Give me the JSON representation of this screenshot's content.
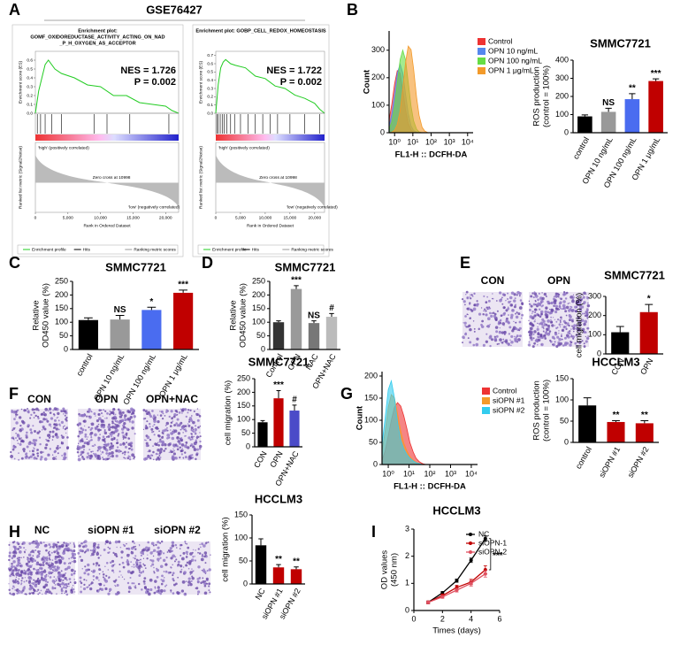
{
  "header": {
    "dataset_title": "GSE76427",
    "panel_labels": [
      "A",
      "B",
      "C",
      "D",
      "E",
      "F",
      "G",
      "H",
      "I"
    ]
  },
  "image_labels": {
    "E": [
      "CON",
      "OPN"
    ],
    "F": [
      "CON",
      "OPN",
      "OPN+NAC"
    ],
    "H": [
      "NC",
      "siOPN #1",
      "siOPN #2"
    ]
  },
  "chart_data": [
    {
      "type": "gsea",
      "title": [
        "Enrichment plot:",
        "GOMF_OXIDOREDUCTASE_ACTIVITY_ACTING_ON_NAD",
        "_P_H_OXYGEN_AS_ACCEPTOR"
      ],
      "nes": "NES = 1.726",
      "p": "P = 0.002",
      "ylabel": "Enrichment score (ES)",
      "metric_label": "Ranked list metric (Signal2Noise)",
      "xlabel": "Rank in Ordered Dataset",
      "high_label": "'high' (positively correlated)",
      "low_label": "'low' (negatively correlated)",
      "zero_cross": "Zero cross at 10998",
      "legend": [
        "Enrichment profile",
        "Hits",
        "Ranking metric scores"
      ],
      "color": "#22cc22",
      "x": [
        0,
        500,
        1000,
        1500,
        2000,
        3000,
        4000,
        6000,
        8000,
        10000,
        12000,
        14000,
        16000,
        18000,
        20000,
        21000,
        22000
      ],
      "values": [
        0,
        0.25,
        0.4,
        0.55,
        0.6,
        0.5,
        0.45,
        0.4,
        0.32,
        0.3,
        0.2,
        0.2,
        0.12,
        0.1,
        0.08,
        0.03,
        0
      ],
      "hits": [
        300,
        800,
        1500,
        2500,
        4000,
        9000,
        11000,
        14500,
        20500
      ],
      "xlim": [
        0,
        22000
      ],
      "xticks": [
        0,
        {
          "value": 5000,
          "label": "5,000"
        },
        {
          "value": 10000,
          "label": "10,000"
        },
        {
          "value": 15000,
          "label": "15,000"
        },
        {
          "value": 20000,
          "label": "20,000"
        }
      ],
      "ylim": [
        0,
        0.7
      ],
      "yticks": [
        {
          "value": 0,
          "label": "0.0"
        },
        0.1,
        0.2,
        0.3,
        0.4,
        0.5,
        0.6
      ]
    },
    {
      "type": "gsea",
      "title": [
        "Enrichment plot: GOBP_CELL_REDOX_HOMEOSTASIS"
      ],
      "nes": "NES = 1.722",
      "p": "P = 0.002",
      "ylabel": "Enrichment score (ES)",
      "metric_label": "Ranked list metric (Signal2Noise)",
      "xlabel": "Rank in Ordered Dataset",
      "high_label": "'high' (positively correlated)",
      "low_label": "'low' (negatively correlated)",
      "zero_cross": "Zero cross at 10998",
      "legend": [
        "Enrichment profile",
        "Hits",
        "Ranking metric scores"
      ],
      "color": "#22cc22",
      "x": [
        0,
        500,
        1000,
        1500,
        2000,
        3000,
        4000,
        6000,
        8000,
        10000,
        12000,
        14000,
        16000,
        18000,
        20000,
        21000,
        22000
      ],
      "values": [
        0,
        0.35,
        0.55,
        0.62,
        0.65,
        0.6,
        0.58,
        0.55,
        0.45,
        0.42,
        0.33,
        0.3,
        0.22,
        0.18,
        0.12,
        0.05,
        0
      ],
      "hits": [
        200,
        500,
        900,
        1300,
        1700,
        2200,
        3000,
        3800,
        5000,
        6500,
        8000,
        9500,
        11000,
        12500,
        15000,
        18000,
        21000
      ],
      "xlim": [
        0,
        22000
      ],
      "xticks": [
        0,
        {
          "value": 5000,
          "label": "5,000"
        },
        {
          "value": 10000,
          "label": "10,000"
        },
        {
          "value": 15000,
          "label": "15,000"
        },
        {
          "value": 20000,
          "label": "20,000"
        }
      ],
      "ylim": [
        0,
        0.75
      ],
      "yticks": [
        {
          "value": 0,
          "label": "0.0"
        },
        0.1,
        0.2,
        0.3,
        0.4,
        0.5,
        0.6,
        0.7
      ]
    },
    {
      "type": "flow",
      "xlabel": "FL1-H :: DCFH-DA",
      "ylabel": "Count",
      "log_x": true,
      "x": [
        0.5,
        0.7,
        1,
        1.4,
        2,
        2.8,
        4,
        5.6,
        8,
        11,
        16,
        22,
        32,
        45,
        64
      ],
      "series": [
        {
          "name": "Control",
          "color": "#ee3333",
          "values": [
            47,
            103,
            178,
            226,
            216,
            156,
            82,
            34,
            10,
            2,
            0,
            0,
            0,
            0,
            0
          ]
        },
        {
          "name": "OPN 10 ng/mL",
          "color": "#5588ee",
          "values": [
            25,
            67,
            141,
            216,
            250,
            218,
            140,
            70,
            25,
            8,
            2,
            0,
            0,
            0,
            0
          ]
        },
        {
          "name": "OPN 100 ng/mL",
          "color": "#66dd44",
          "values": [
            13,
            39,
            97,
            179,
            265,
            300,
            264,
            183,
            96,
            43,
            13,
            3,
            0,
            0,
            0
          ]
        },
        {
          "name": "OPN 1 μg/mL",
          "color": "#f39a2a",
          "values": [
            0,
            2,
            9,
            30,
            80,
            160,
            257,
            315,
            302,
            232,
            129,
            63,
            20,
            6,
            1
          ]
        }
      ],
      "xlim": [
        0.5,
        20000
      ],
      "xticks": [
        {
          "value": 1,
          "label": "10⁰"
        },
        {
          "value": 10,
          "label": "10¹"
        },
        {
          "value": 100,
          "label": "10²"
        },
        {
          "value": 1000,
          "label": "10³"
        },
        {
          "value": 10000,
          "label": "10⁴"
        }
      ],
      "ylim": [
        0,
        370
      ],
      "yticks": [
        0,
        100,
        200,
        300
      ]
    },
    {
      "type": "bar",
      "title": "SMMC7721",
      "ylabel": [
        "ROS production",
        "(control = 100%)"
      ],
      "categories": [
        "control",
        "OPN 10 ng/mL",
        "OPN 100 ng/mL",
        "OPN 1 μg/mL"
      ],
      "values": [
        90,
        115,
        185,
        285
      ],
      "errors": [
        8,
        20,
        30,
        12
      ],
      "significance": [
        null,
        "NS",
        "**",
        "***"
      ],
      "colors": [
        "#000000",
        "#999999",
        "#4a6cf0",
        "#c00000"
      ],
      "ylim": [
        0,
        400
      ],
      "yticks": [
        0,
        100,
        200,
        300,
        400
      ]
    },
    {
      "type": "bar",
      "title": "SMMC7721",
      "ylabel": [
        "Relative",
        "OD450 value (%)"
      ],
      "categories": [
        "control",
        "OPN 10 ng/mL",
        "OPN 100 ng/mL",
        "OPN 1 μg/mL"
      ],
      "values": [
        108,
        110,
        145,
        208
      ],
      "errors": [
        8,
        15,
        10,
        10
      ],
      "significance": [
        null,
        "NS",
        "*",
        "***"
      ],
      "colors": [
        "#000000",
        "#999999",
        "#4a6cf0",
        "#c00000"
      ],
      "ylim": [
        0,
        250
      ],
      "yticks": [
        0,
        50,
        100,
        150,
        200,
        250
      ]
    },
    {
      "type": "bar",
      "title": "SMMC7721",
      "ylabel": [
        "Relative",
        "OD450 value (%)"
      ],
      "categories": [
        "Control",
        "OPN",
        "NAC",
        "OPN+NAC"
      ],
      "values": [
        100,
        222,
        97,
        120
      ],
      "errors": [
        5,
        12,
        8,
        12
      ],
      "significance": [
        null,
        "***",
        "NS",
        "#"
      ],
      "colors": [
        "#333333",
        "#9a9a9a",
        "#777777",
        "#bbbbbb"
      ],
      "ylim": [
        0,
        250
      ],
      "yticks": [
        0,
        50,
        100,
        150,
        200,
        250
      ]
    },
    {
      "type": "bar",
      "title": "SMMC7721",
      "ylabel": [
        "cell migration (%)"
      ],
      "categories": [
        "CON",
        "OPN"
      ],
      "values": [
        113,
        218
      ],
      "errors": [
        30,
        40
      ],
      "significance": [
        null,
        "*"
      ],
      "colors": [
        "#000000",
        "#c00000"
      ],
      "ylim": [
        0,
        300
      ],
      "yticks": [
        0,
        100,
        200,
        300
      ]
    },
    {
      "type": "bar",
      "title": "SMMC7721",
      "ylabel": [
        "cell migration (%)"
      ],
      "categories": [
        "CON",
        "OPN",
        "OPN+NAC"
      ],
      "values": [
        90,
        178,
        133
      ],
      "errors": [
        6,
        28,
        20
      ],
      "significance": [
        null,
        "***",
        "#"
      ],
      "colors": [
        "#000000",
        "#c00000",
        "#4b4bc8"
      ],
      "ylim": [
        0,
        250
      ],
      "yticks": [
        0,
        50,
        100,
        150,
        200,
        250
      ]
    },
    {
      "type": "flow",
      "xlabel": "FL1-H :: DCFH-DA",
      "ylabel": "Count",
      "log_x": true,
      "x": [
        0.5,
        0.7,
        1,
        1.4,
        2,
        2.8,
        4,
        5.6,
        8,
        11,
        16,
        22,
        32,
        45,
        64
      ],
      "series": [
        {
          "name": "Control",
          "color": "#ee3333",
          "values": [
            10,
            30,
            65,
            100,
            130,
            140,
            132,
            110,
            80,
            50,
            28,
            14,
            6,
            2,
            0
          ]
        },
        {
          "name": "siOPN #1",
          "color": "#f39a2a",
          "values": [
            30,
            75,
            130,
            158,
            150,
            115,
            75,
            48,
            30,
            18,
            10,
            5,
            2,
            0,
            0
          ]
        },
        {
          "name": "siOPN #2",
          "color": "#33ccee",
          "values": [
            46,
            104,
            169,
            189,
            150,
            95,
            55,
            35,
            22,
            14,
            8,
            4,
            2,
            0,
            0
          ]
        }
      ],
      "xlim": [
        0.5,
        20000
      ],
      "xticks": [
        {
          "value": 1,
          "label": "10⁰"
        },
        {
          "value": 10,
          "label": "10¹"
        },
        {
          "value": 100,
          "label": "10²"
        },
        {
          "value": 1000,
          "label": "10³"
        },
        {
          "value": 10000,
          "label": "10⁴"
        }
      ],
      "ylim": [
        0,
        210
      ],
      "yticks": [
        0,
        50,
        100,
        150,
        200
      ]
    },
    {
      "type": "bar",
      "title": "HCCLM3",
      "ylabel": [
        "ROS production",
        "(control = 100%)"
      ],
      "categories": [
        "control",
        "siOPN #1",
        "siOPN #2"
      ],
      "values": [
        87,
        48,
        45
      ],
      "errors": [
        18,
        3,
        6
      ],
      "significance": [
        null,
        "**",
        "**"
      ],
      "colors": [
        "#000000",
        "#c00000",
        "#c00000"
      ],
      "ylim": [
        0,
        150
      ],
      "yticks": [
        0,
        50,
        100,
        150
      ]
    },
    {
      "type": "bar",
      "title": "HCCLM3",
      "ylabel": [
        "cell migration (%)"
      ],
      "categories": [
        "NC",
        "siOPN #1",
        "siOPN #2"
      ],
      "values": [
        84,
        36,
        32
      ],
      "errors": [
        14,
        6,
        5
      ],
      "significance": [
        null,
        "**",
        "**"
      ],
      "colors": [
        "#000000",
        "#c00000",
        "#c00000"
      ],
      "ylim": [
        0,
        150
      ],
      "yticks": [
        0,
        50,
        100,
        150
      ]
    },
    {
      "type": "line",
      "title": "HCCLM3",
      "ylabel": [
        "OD values",
        "(450 nm)"
      ],
      "xlabel": "Times (days)",
      "annotation": "***",
      "x": [
        1,
        2,
        3,
        4,
        5
      ],
      "series": [
        {
          "name": "NC",
          "color": "#000000",
          "values": [
            0.3,
            0.65,
            1.1,
            1.85,
            2.65
          ],
          "errors": [
            0.05,
            0.05,
            0.06,
            0.08,
            0.1
          ]
        },
        {
          "name": "siOPN-1",
          "color": "#c00000",
          "values": [
            0.3,
            0.55,
            0.85,
            1.05,
            1.5
          ],
          "errors": [
            0.05,
            0.06,
            0.08,
            0.1,
            0.15
          ]
        },
        {
          "name": "siOPN-2",
          "color": "#e05060",
          "values": [
            0.3,
            0.5,
            0.75,
            1.0,
            1.35
          ],
          "errors": [
            0.05,
            0.05,
            0.07,
            0.1,
            0.12
          ]
        }
      ],
      "xlim": [
        0,
        6
      ],
      "xticks": [
        0,
        2,
        4,
        6
      ],
      "ylim": [
        0,
        3
      ],
      "yticks": [
        0,
        1,
        2,
        3
      ]
    }
  ]
}
